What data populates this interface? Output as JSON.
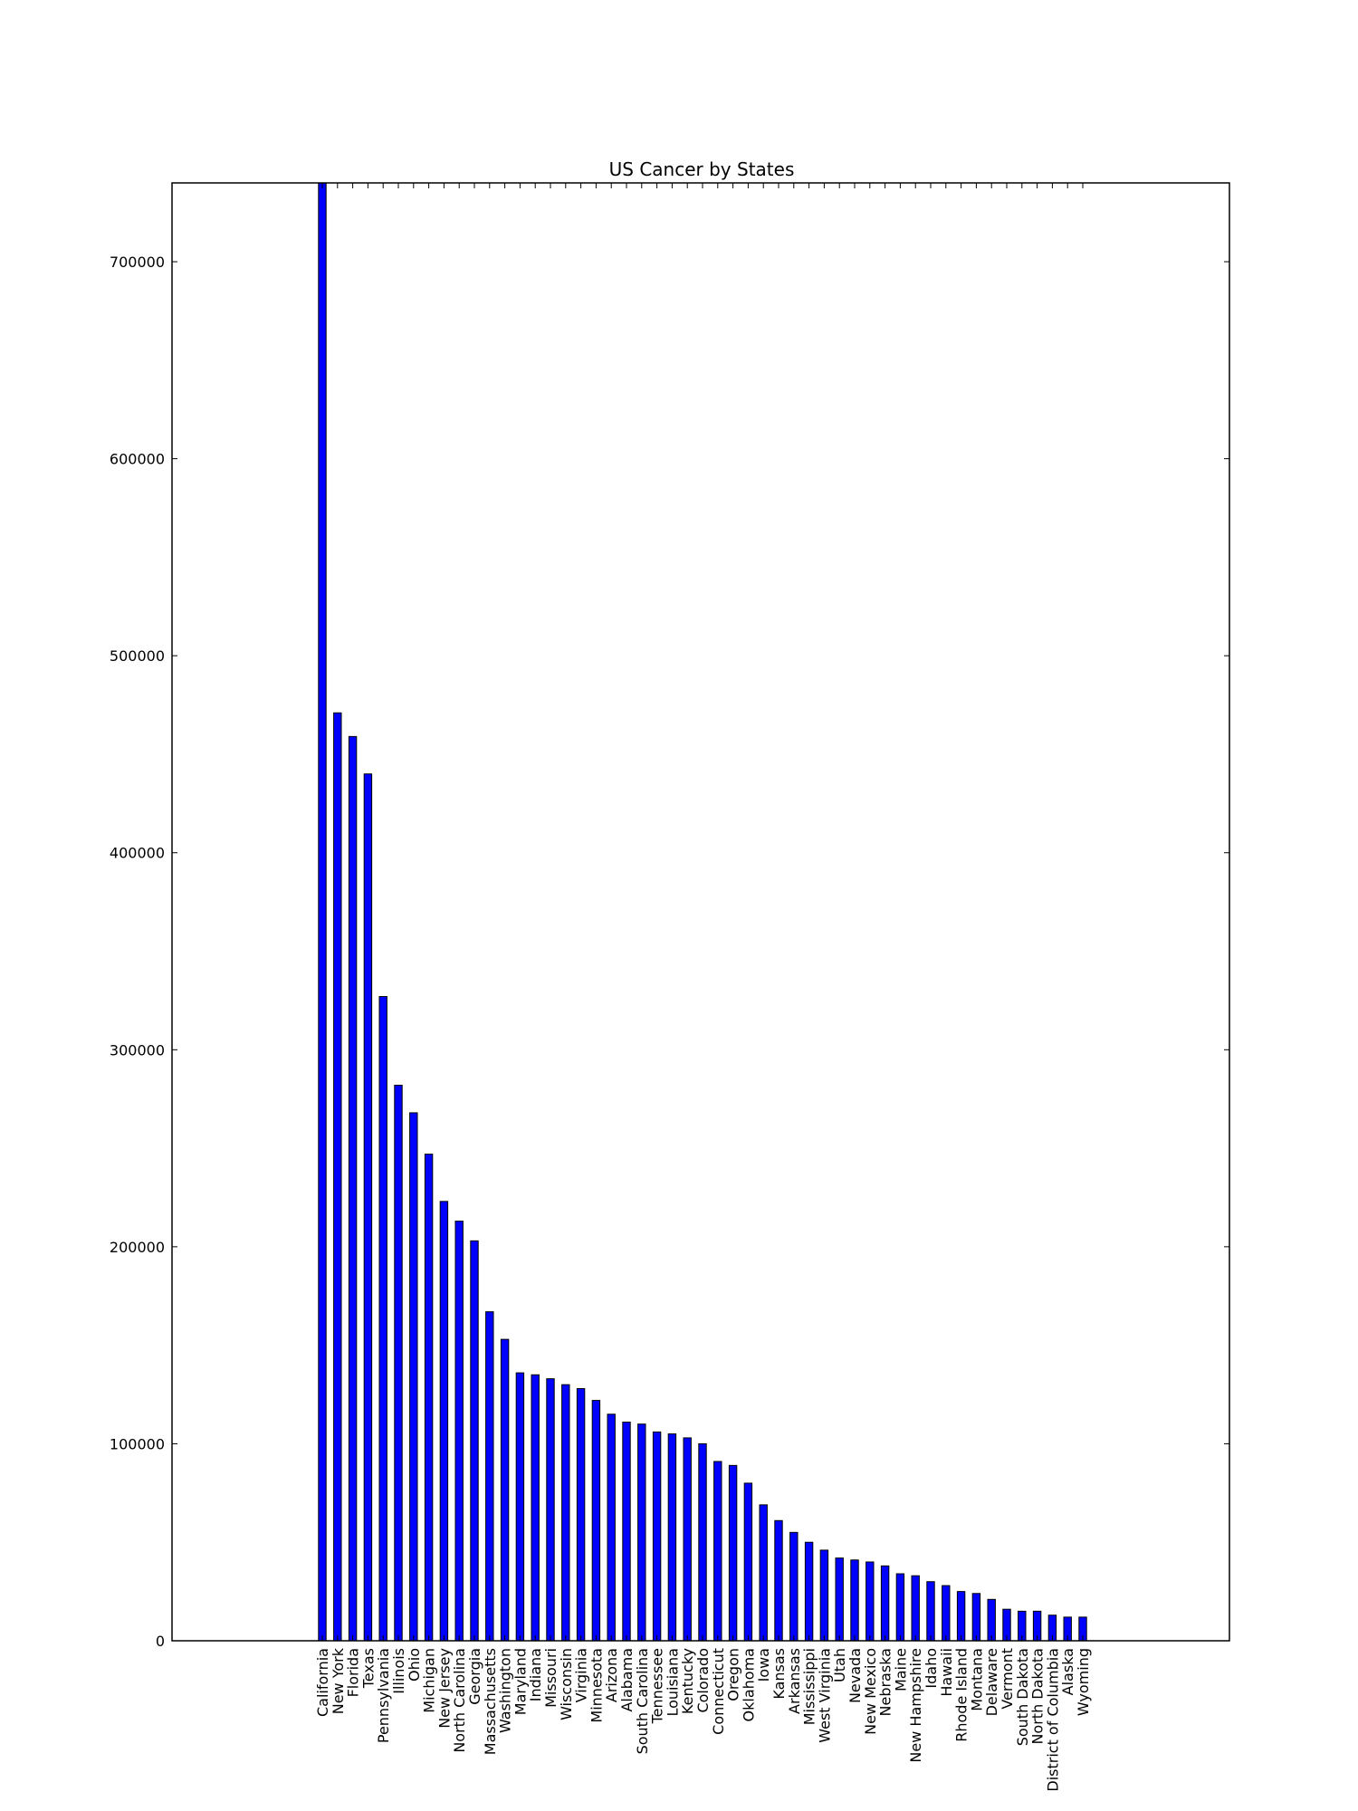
{
  "chart_data": {
    "type": "bar",
    "title": "US Cancer by States",
    "xlabel": "",
    "ylabel": "",
    "ylim": [
      0,
      740000
    ],
    "yticks": [
      0,
      100000,
      200000,
      300000,
      400000,
      500000,
      600000,
      700000
    ],
    "ytick_labels": [
      "0",
      "100000",
      "200000",
      "300000",
      "400000",
      "500000",
      "600000",
      "700000"
    ],
    "grid": false,
    "bar_color": "#0000ff",
    "categories": [
      "California",
      "New York",
      "Florida",
      "Texas",
      "Pennsylvania",
      "Illinois",
      "Ohio",
      "Michigan",
      "New Jersey",
      "North Carolina",
      "Georgia",
      "Massachusetts",
      "Washington",
      "Maryland",
      "Indiana",
      "Missouri",
      "Wisconsin",
      "Virginia",
      "Minnesota",
      "Arizona",
      "Alabama",
      "South Carolina",
      "Tennessee",
      "Louisiana",
      "Kentucky",
      "Colorado",
      "Connecticut",
      "Oregon",
      "Oklahoma",
      "Iowa",
      "Kansas",
      "Arkansas",
      "Mississippi",
      "West Virginia",
      "Utah",
      "Nevada",
      "New Mexico",
      "Nebraska",
      "Maine",
      "New Hampshire",
      "Idaho",
      "Hawaii",
      "Rhode Island",
      "Montana",
      "Delaware",
      "Vermont",
      "South Dakota",
      "North Dakota",
      "District of Columbia",
      "Alaska",
      "Wyoming"
    ],
    "values": [
      740000,
      471000,
      459000,
      440000,
      327000,
      282000,
      268000,
      247000,
      223000,
      213000,
      203000,
      167000,
      153000,
      136000,
      135000,
      133000,
      130000,
      128000,
      122000,
      115000,
      111000,
      110000,
      106000,
      105000,
      103000,
      100000,
      91000,
      89000,
      80000,
      69000,
      61000,
      55000,
      50000,
      46000,
      42000,
      41000,
      40000,
      38000,
      34000,
      33000,
      30000,
      28000,
      25000,
      24000,
      21000,
      16000,
      15000,
      15000,
      13000,
      12000,
      12000
    ]
  }
}
